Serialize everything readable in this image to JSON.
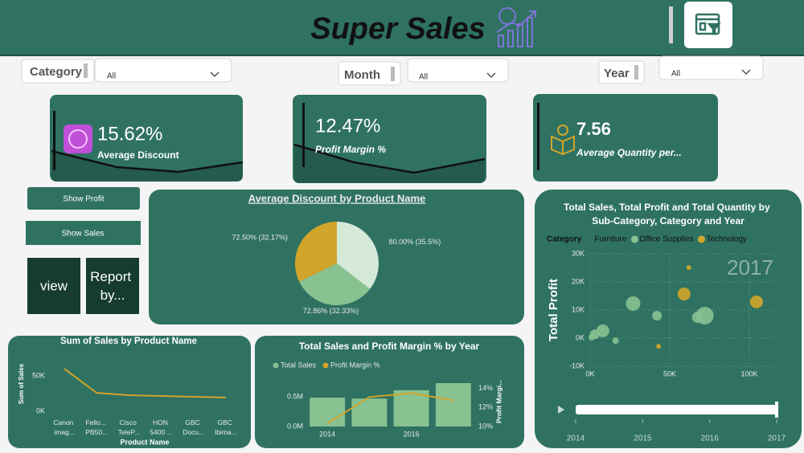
{
  "header": {
    "title": "Super Sales"
  },
  "slicers": [
    {
      "label": "Category",
      "value": "All"
    },
    {
      "label": "Month",
      "value": "All"
    },
    {
      "label": "Year",
      "value": "All"
    }
  ],
  "kpi_cards": [
    {
      "value": "15.62%",
      "label": "Average Discount"
    },
    {
      "value": "12.47%",
      "label": "Profit Margin %"
    },
    {
      "value": "7.56",
      "label": "Average Quantity per..."
    }
  ],
  "buttons": [
    "Show Profit",
    "Show Sales",
    "view",
    "Report by..."
  ],
  "chart_data": [
    {
      "type": "pie",
      "title": "Average Discount by Product Name",
      "values": [
        80.0,
        72.86,
        72.5
      ],
      "value_labels": [
        "80.00% (35.5%)",
        "72.86% (32.33%)",
        "72.50% (32.17%)"
      ],
      "colors": [
        "#d4e9d8",
        "#88c291",
        "#d1a52a"
      ]
    },
    {
      "type": "line",
      "title": "Sum of Sales by Product Name",
      "x_label": "Product Name",
      "y_label": "Sum of Sales",
      "categories": [
        "Canon imag...",
        "Fello... PB50...",
        "Cisco TeleP...",
        "HON 5400 ...",
        "GBC Docu...",
        "GBC Ibima..."
      ],
      "values": [
        60000,
        26000,
        22700,
        21600,
        20500,
        19300
      ],
      "color": "#d1a52a",
      "ylim": [
        0,
        65000
      ],
      "yticks": [
        {
          "value": 0,
          "label": "0K"
        },
        {
          "value": 50000,
          "label": "50K"
        }
      ]
    },
    {
      "type": "bar-line",
      "title": "Total Sales and Profit Margin % by Year",
      "y2_label": "Profit Margi...",
      "categories": [
        "2014",
        null,
        "2016",
        null
      ],
      "series": [
        {
          "name": "Total Sales",
          "type": "bar",
          "color": "#88c291",
          "values": [
            486000,
            470000,
            610000,
            730000
          ]
        },
        {
          "name": "Profit Margin %",
          "type": "line",
          "axis": "y2",
          "color": "#d1a52a",
          "values": [
            10.3,
            13.1,
            13.5,
            12.75
          ]
        }
      ],
      "ylim": [
        0,
        800000
      ],
      "yticks": [
        {
          "value": 0,
          "label": "0.0M"
        },
        {
          "value": 500000,
          "label": "0.5M"
        }
      ],
      "y2lim": [
        10,
        15
      ],
      "y2ticks": [
        {
          "value": 10,
          "label": "10%"
        },
        {
          "value": 12,
          "label": "12%"
        },
        {
          "value": 14,
          "label": "14%"
        }
      ]
    },
    {
      "type": "bubble",
      "title": "Total Sales, Total Profit and Total Quantity by Sub-Category, Category and Year",
      "y_label": "Total Profit",
      "legend_title": "Category",
      "grid": true,
      "series": [
        {
          "name": "Furniture",
          "color": "#2f7262",
          "x": [],
          "y": [],
          "size": []
        },
        {
          "name": "Office Supplies",
          "color": "#88c291",
          "x": [
            27000,
            42000,
            72000,
            67500,
            8000,
            3000,
            1000,
            16000
          ],
          "y": [
            12300,
            8000,
            8000,
            7400,
            2600,
            1400,
            300,
            -900
          ],
          "size": [
            1620,
            720,
            2420,
            980,
            1280,
            720,
            320,
            320
          ]
        },
        {
          "name": "Technology",
          "color": "#d1a52a",
          "x": [
            62000,
            59000,
            104500,
            43000
          ],
          "y": [
            25100,
            15700,
            12900,
            -2900
          ],
          "size": [
            180,
            1280,
            1280,
            180
          ]
        }
      ],
      "xlim": [
        0,
        117000
      ],
      "xticks": [
        {
          "value": 0,
          "label": "0K"
        },
        {
          "value": 50000,
          "label": "50K"
        },
        {
          "value": 100000,
          "label": "100K"
        }
      ],
      "ylim": [
        -10000,
        30000
      ],
      "yticks": [
        {
          "value": -10000,
          "label": "-10K"
        },
        {
          "value": 0,
          "label": "0K"
        },
        {
          "value": 10000,
          "label": "10K"
        },
        {
          "value": 20000,
          "label": "20K"
        },
        {
          "value": 30000,
          "label": "30K"
        }
      ],
      "play_axis": {
        "labels": [
          "2014",
          "2015",
          "2016",
          "2017"
        ],
        "current": "2017"
      }
    }
  ]
}
